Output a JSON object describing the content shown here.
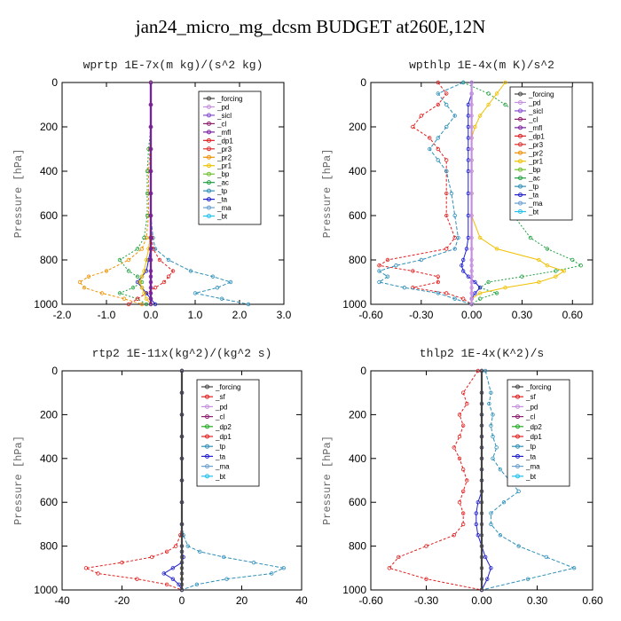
{
  "page_title": "jan24_micro_mg_dcsm  BUDGET at260E,12N",
  "colors": {
    "_forcing": "#444444",
    "_pd": "#c58fe0",
    "_sicl": "#8a4fd0",
    "_cl": "#8e1e6e",
    "_mfl": "#7a1fa0",
    "_dp1": "#e02020",
    "_pr3": "#e03030",
    "_pr2": "#f09000",
    "_pr1": "#f0c000",
    "_bp": "#70c030",
    "_ac": "#20a040",
    "_tp": "#2f8fb8",
    "_ta": "#2020d0",
    "_ma": "#6aa0d0",
    "_bt": "#20c0f0",
    "_sf": "#e02020",
    "_dp2": "#22aa22",
    "_dp1_green": "#55dd55"
  },
  "chart_data": [
    {
      "type": "line",
      "title": "wprtp  1E-7x(m kg)/(s^2 kg)",
      "ylabel": "Pressure [hPa]",
      "xlim": [
        -2.0,
        3.0
      ],
      "xticks": [
        "-2.0",
        "-1.0",
        "0.0",
        "1.0",
        "2.0",
        "3.0"
      ],
      "ylim": [
        0,
        1000
      ],
      "yticks": [
        "0",
        "200",
        "400",
        "600",
        "800",
        "1000"
      ],
      "y": [
        0,
        100,
        200,
        300,
        400,
        500,
        600,
        700,
        750,
        800,
        850,
        875,
        900,
        925,
        950,
        975,
        1000
      ],
      "legend": [
        "_forcing",
        "_pd",
        "_sicl",
        "_cl",
        "_mfl",
        "_dp1",
        "_pr3",
        "_pr2",
        "_pr1",
        "_bp",
        "_ac",
        "_tp",
        "_ta",
        "_ma",
        "_bt"
      ],
      "series": [
        {
          "name": "_tp",
          "x": [
            0,
            0,
            0,
            0,
            0,
            0,
            0,
            0.05,
            0.1,
            0.4,
            0.9,
            1.4,
            1.8,
            1.5,
            1.0,
            1.6,
            2.2
          ]
        },
        {
          "name": "_pr2",
          "x": [
            0,
            0,
            0,
            -0.02,
            -0.05,
            -0.05,
            -0.05,
            -0.1,
            -0.2,
            -0.5,
            -1.0,
            -1.4,
            -1.6,
            -1.5,
            -1.1,
            -0.6,
            -0.2
          ]
        },
        {
          "name": "_ac",
          "x": [
            0,
            0,
            0,
            -0.05,
            -0.08,
            -0.08,
            -0.08,
            -0.15,
            -0.3,
            -0.7,
            -0.5,
            -0.3,
            -0.2,
            -0.4,
            -0.7,
            -0.3,
            -0.1
          ]
        },
        {
          "name": "_dp1",
          "x": [
            0,
            0,
            0,
            0,
            0,
            0,
            0,
            0.02,
            0.05,
            0.2,
            0.5,
            0.4,
            0.3,
            0.1,
            -0.1,
            -0.3,
            -0.5
          ]
        },
        {
          "name": "_ta",
          "x": [
            0,
            0,
            0,
            0,
            0,
            0,
            0,
            0,
            0,
            -0.05,
            -0.1,
            -0.2,
            -0.3,
            -0.2,
            -0.1,
            0,
            0.1
          ]
        },
        {
          "name": "_pr1",
          "x": [
            0,
            0,
            0,
            0,
            0,
            0,
            0,
            -0.02,
            -0.05,
            -0.1,
            -0.15,
            -0.2,
            -0.25,
            -0.2,
            -0.15,
            -0.1,
            0
          ]
        },
        {
          "name": "_forcing",
          "x": [
            0,
            0,
            0,
            0,
            0,
            0,
            0,
            0,
            0,
            0,
            0,
            0,
            0,
            0,
            0,
            0,
            0
          ]
        },
        {
          "name": "_mfl",
          "x": [
            0,
            0,
            0,
            0,
            0,
            0,
            0,
            0,
            0,
            0,
            0,
            0,
            0,
            0,
            0,
            0,
            0
          ]
        }
      ]
    },
    {
      "type": "line",
      "title": "wpthlp  1E-4x(m K)/s^2",
      "ylabel": "Pressure [hPa]",
      "xlim": [
        -0.6,
        0.72
      ],
      "xticks": [
        "-0.60",
        "-0.30",
        "0.00",
        "0.30",
        "0.60"
      ],
      "ylim": [
        0,
        1000
      ],
      "yticks": [
        "0",
        "200",
        "400",
        "600",
        "800",
        "1000"
      ],
      "y": [
        0,
        50,
        100,
        150,
        200,
        250,
        300,
        350,
        400,
        500,
        600,
        700,
        750,
        800,
        825,
        850,
        875,
        900,
        925,
        950,
        975,
        1000
      ],
      "legend": [
        "_forcing",
        "_pd",
        "_sicl",
        "_cl",
        "_mfl",
        "_dp1",
        "_pr3",
        "_pr2",
        "_pr1",
        "_bp",
        "_ac",
        "_tp",
        "_ta",
        "_ma",
        "_bt"
      ],
      "series": [
        {
          "name": "_ac",
          "x": [
            -0.05,
            0.1,
            0.2,
            0.3,
            0.4,
            0.45,
            0.42,
            0.38,
            0.3,
            0.25,
            0.25,
            0.35,
            0.45,
            0.6,
            0.65,
            0.5,
            0.3,
            0.1,
            0.05,
            0.15,
            0.05,
            0.0
          ]
        },
        {
          "name": "_dp1",
          "x": [
            -0.2,
            -0.15,
            -0.2,
            -0.3,
            -0.35,
            -0.25,
            -0.2,
            -0.15,
            -0.15,
            -0.15,
            -0.15,
            -0.1,
            -0.15,
            -0.5,
            -0.55,
            -0.35,
            -0.2,
            -0.2,
            -0.35,
            -0.15,
            -0.05,
            0.0
          ]
        },
        {
          "name": "_tp",
          "x": [
            -0.05,
            -0.2,
            -0.15,
            -0.1,
            -0.15,
            -0.2,
            -0.25,
            -0.2,
            -0.15,
            -0.12,
            -0.1,
            -0.08,
            -0.1,
            -0.3,
            -0.45,
            -0.55,
            -0.5,
            -0.55,
            -0.4,
            -0.2,
            -0.1,
            0.0
          ]
        },
        {
          "name": "_pr1",
          "x": [
            0.2,
            0.15,
            0.1,
            0.05,
            0.02,
            0.0,
            0.0,
            0.0,
            0.0,
            0.0,
            0.0,
            0.05,
            0.15,
            0.4,
            0.45,
            0.55,
            0.5,
            0.4,
            0.2,
            0.05,
            0.0,
            0.0
          ]
        },
        {
          "name": "_ta",
          "x": [
            0,
            0,
            -0.02,
            -0.02,
            -0.02,
            -0.02,
            -0.02,
            -0.02,
            -0.02,
            -0.02,
            -0.02,
            -0.02,
            -0.03,
            -0.05,
            -0.06,
            -0.05,
            -0.02,
            0.02,
            0.05,
            0.02,
            0.0,
            0.0
          ]
        },
        {
          "name": "_pd",
          "x": [
            0,
            0,
            0,
            0,
            0,
            0,
            0,
            0,
            0,
            0,
            0,
            0,
            0,
            0,
            0,
            0,
            0,
            0,
            0,
            0,
            0,
            0
          ]
        }
      ]
    },
    {
      "type": "line",
      "title": "rtp2  1E-11x(kg^2)/(kg^2 s)",
      "ylabel": "Pressure [hPa]",
      "xlim": [
        -40,
        40
      ],
      "xticks": [
        "-40",
        "-20",
        "0",
        "20",
        "40"
      ],
      "ylim": [
        0,
        1000
      ],
      "yticks": [
        "0",
        "200",
        "400",
        "600",
        "800",
        "1000"
      ],
      "y": [
        0,
        100,
        200,
        300,
        400,
        500,
        600,
        700,
        750,
        800,
        825,
        850,
        875,
        900,
        925,
        950,
        975,
        1000
      ],
      "legend": [
        "_forcing",
        "_sf",
        "_pd",
        "_cl",
        "_dp2",
        "_dp1",
        "_tp",
        "_ta",
        "_ma",
        "_bt"
      ],
      "series": [
        {
          "name": "_dp1",
          "x": [
            0,
            0,
            0,
            0,
            0,
            0,
            0,
            0,
            -0.5,
            -2,
            -5,
            -10,
            -20,
            -32,
            -28,
            -15,
            -5,
            0
          ]
        },
        {
          "name": "_tp",
          "x": [
            0,
            0,
            0,
            0,
            0,
            0,
            0,
            0,
            0.5,
            2,
            6,
            14,
            24,
            34,
            30,
            15,
            5,
            0
          ]
        },
        {
          "name": "_ta",
          "x": [
            0,
            0,
            0,
            0,
            0,
            0,
            0,
            0,
            0,
            0,
            0,
            0.5,
            0,
            -3,
            -6,
            -3,
            -1,
            0
          ]
        },
        {
          "name": "_forcing",
          "x": [
            0,
            0,
            0,
            0,
            0,
            0,
            0,
            0,
            0,
            0,
            0,
            0,
            0,
            0,
            0,
            0,
            0,
            0
          ]
        }
      ]
    },
    {
      "type": "line",
      "title": "thlp2  1E-4x(K^2)/s",
      "ylabel": "Pressure [hPa]",
      "xlim": [
        -0.6,
        0.6
      ],
      "xticks": [
        "-0.60",
        "-0.30",
        "0.00",
        "0.30",
        "0.60"
      ],
      "ylim": [
        0,
        1000
      ],
      "yticks": [
        "0",
        "200",
        "400",
        "600",
        "800",
        "1000"
      ],
      "y": [
        0,
        100,
        150,
        200,
        250,
        300,
        350,
        400,
        450,
        500,
        550,
        600,
        650,
        700,
        750,
        800,
        850,
        900,
        950,
        1000
      ],
      "legend": [
        "_forcing",
        "_sf",
        "_pd",
        "_cl",
        "_dp2",
        "_dp1",
        "_tp",
        "_ta",
        "_ma",
        "_bt"
      ],
      "series": [
        {
          "name": "_dp1",
          "x": [
            -0.02,
            -0.1,
            -0.08,
            -0.12,
            -0.1,
            -0.12,
            -0.15,
            -0.12,
            -0.1,
            -0.08,
            -0.1,
            -0.12,
            -0.1,
            -0.1,
            -0.15,
            -0.3,
            -0.45,
            -0.5,
            -0.3,
            0.0
          ]
        },
        {
          "name": "_tp",
          "x": [
            0.02,
            0.05,
            0.04,
            0.06,
            0.05,
            0.06,
            0.08,
            0.06,
            0.1,
            0.15,
            0.2,
            0.12,
            0.05,
            0.05,
            0.1,
            0.2,
            0.35,
            0.5,
            0.25,
            0.0
          ]
        },
        {
          "name": "_ta",
          "x": [
            0,
            0,
            0,
            0,
            0,
            0,
            0,
            0,
            0,
            0,
            0,
            -0.02,
            -0.03,
            -0.03,
            -0.02,
            0,
            0.02,
            0.05,
            0.03,
            0
          ]
        },
        {
          "name": "_forcing",
          "x": [
            0,
            0,
            0,
            0,
            0,
            0,
            0,
            0,
            0,
            0,
            0,
            0,
            0,
            0,
            0,
            0,
            0,
            0,
            0,
            0
          ]
        }
      ]
    }
  ]
}
